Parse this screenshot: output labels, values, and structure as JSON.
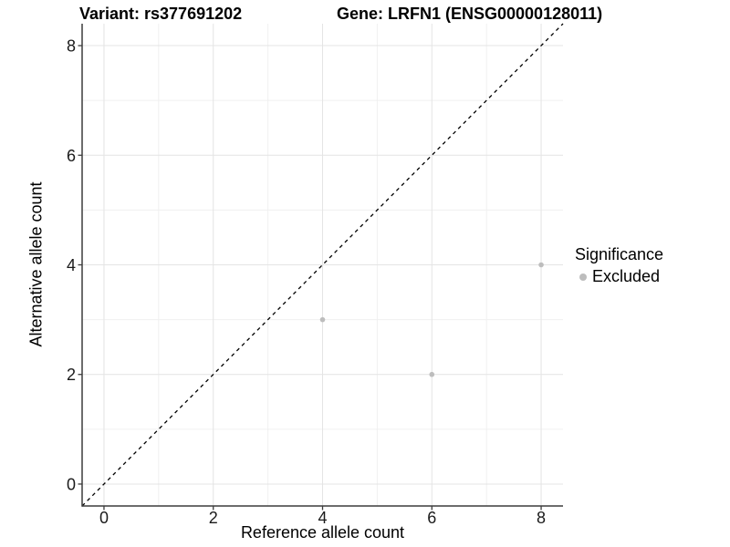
{
  "chart_data": {
    "type": "scatter",
    "titles": {
      "left": "Variant: rs377691202",
      "right": "Gene: LRFN1 (ENSG00000128011)"
    },
    "xlabel": "Reference allele count",
    "ylabel": "Alternative allele count",
    "xlim": [
      -0.4,
      8.4
    ],
    "ylim": [
      -0.4,
      8.4
    ],
    "x_ticks": [
      0,
      2,
      4,
      6,
      8
    ],
    "y_ticks": [
      0,
      2,
      4,
      6,
      8
    ],
    "x_minor": [
      1,
      3,
      5,
      7
    ],
    "y_minor": [
      1,
      3,
      5,
      7
    ],
    "grid": "major+minor",
    "reference_line": {
      "type": "identity y=x",
      "style": "dashed",
      "color": "#000000"
    },
    "series": [
      {
        "name": "Excluded",
        "color": "#bdbdbd",
        "points": [
          {
            "x": 4,
            "y": 3
          },
          {
            "x": 6,
            "y": 2
          },
          {
            "x": 8,
            "y": 4
          }
        ]
      }
    ],
    "legend": {
      "title": "Significance",
      "position": "right",
      "entries": [
        {
          "label": "Excluded",
          "color": "#bdbdbd"
        }
      ]
    },
    "colors": {
      "axis": "#3c3c3c",
      "grid_major": "#e4e4e4",
      "grid_minor": "#f0f0f0",
      "text": "#000000"
    }
  }
}
